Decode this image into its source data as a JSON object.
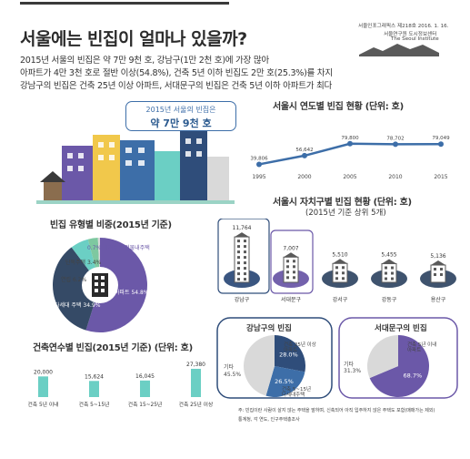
{
  "header": {
    "title": "서울에는 빈집이 얼마나 있을까?",
    "publisher_line1": "서울인포그래픽스 제218호 2016. 1. 16.",
    "publisher_line2": "서울연구원 도시정보센터",
    "publisher_line3": "The Seoul Institute"
  },
  "summary": [
    "2015년 서울의 빈집은 약 7만 9천 호, 강남구(1만 2천 호)에 가장 많아",
    "아파트가 4만 3천 호로 절반 이상(54.8%), 건축 5년 이하 빈집도 2만 호(25.3%)를 차지",
    "강남구의 빈집은 건축 25년 이상 아파트, 서대문구의 빈집은 건축 5년 이하 아파트가 최다"
  ],
  "callout": {
    "line1": "2015년 서울의 빈집은",
    "line2": "약 7만 9천 호"
  },
  "colors": {
    "blue": "#3d6ea8",
    "navy": "#2f4d7a",
    "purple": "#6b58a8",
    "teal": "#6bcfc4",
    "green": "#7ec8a0",
    "gray": "#d9d9d9",
    "dark": "#354a66"
  },
  "chart_data": [
    {
      "type": "line",
      "title": "서울시 연도별 빈집 현황 (단위: 호)",
      "x": [
        "1995",
        "2000",
        "2005",
        "2010",
        "2015"
      ],
      "values": [
        39806,
        56642,
        79800,
        78702,
        79049
      ],
      "labels": [
        "39,806",
        "56,642",
        "79,800",
        "78,702",
        "79,049"
      ]
    },
    {
      "type": "pie",
      "title": "빈집 유형별 비중(2015년 기준)",
      "slices": [
        {
          "label": "아파트",
          "value": 54.8,
          "text": "아파트\n54.8%"
        },
        {
          "label": "다세대주택",
          "value": 34.9,
          "text": "다세대\n주택\n34.9%"
        },
        {
          "label": "연립",
          "value": 6.2,
          "text": "연립 6.2%"
        },
        {
          "label": "단독주택",
          "value": 3.4,
          "text": "단독주택\n3.4%"
        },
        {
          "label": "비거주용 건물내주택",
          "value": 0.7,
          "text": "0.7% 비거주용 건물내주택"
        }
      ]
    },
    {
      "type": "bar",
      "title": "건축연수별 빈집(2015년 기준) (단위: 호)",
      "categories": [
        "건축 5년 이내",
        "건축 5~15년",
        "건축 15~25년",
        "건축 25년 이상"
      ],
      "values": [
        20000,
        15624,
        16045,
        27380
      ],
      "labels": [
        "20,000",
        "15,624",
        "16,045",
        "27,380"
      ]
    },
    {
      "type": "bar",
      "title": "서울시 자치구별 빈집 현황 (단위: 호)",
      "subtitle": "(2015년 기준 상위 5개)",
      "categories": [
        "강남구",
        "서대문구",
        "강서구",
        "강동구",
        "용산구"
      ],
      "values": [
        11764,
        7007,
        5510,
        5455,
        5136
      ],
      "labels": [
        "11,764",
        "7,007",
        "5,510",
        "5,455",
        "5,136"
      ]
    },
    {
      "type": "pie",
      "title": "강남구의 빈집",
      "slices": [
        {
          "label": "건축 25년 이상 아파트",
          "value": 28.0,
          "text": "28.0%"
        },
        {
          "label": "건축 5~15년 다세대주택",
          "value": 26.5,
          "text": "26.5%"
        },
        {
          "label": "기타",
          "value": 45.5,
          "text": "45.5%"
        }
      ],
      "annotations": [
        "건축 25년 이상",
        "아파트",
        "건축 5~15년",
        "다세대주택",
        "기타"
      ]
    },
    {
      "type": "pie",
      "title": "서대문구의 빈집",
      "slices": [
        {
          "label": "건축 5년 이내 아파트",
          "value": 68.7,
          "text": "68.7%"
        },
        {
          "label": "기타",
          "value": 31.3,
          "text": "31.3%"
        }
      ],
      "annotations": [
        "건축 5년 이내",
        "아파트",
        "기타"
      ]
    }
  ],
  "footer": {
    "note": "주: 빈집이란 사람이 살지 않는 주택을 말하며, 신축되어 아직 입주하지 않은 주택도 포함(매매가는 제외)",
    "source": "통계청, 각 연도, 인구주택총조사"
  }
}
